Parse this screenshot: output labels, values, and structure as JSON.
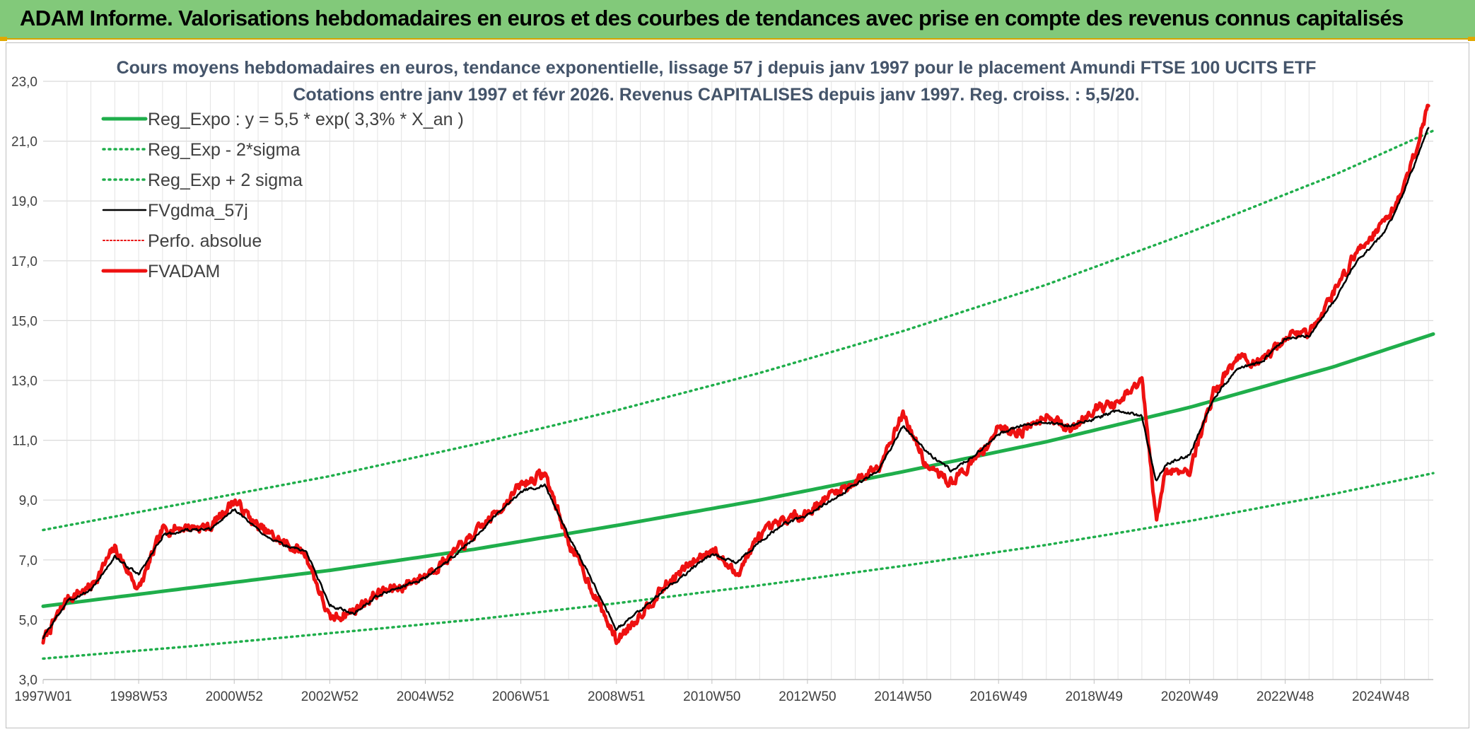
{
  "header": {
    "title": "ADAM Informe. Valorisations hebdomadaires en euros et des courbes de tendances avec prise en compte des revenus connus capitalisés"
  },
  "chart_data": {
    "type": "line",
    "title": "Cours moyens hebdomadaires en euros, tendance exponentielle, lissage 57 j depuis janv 1997 pour le placement Amundi FTSE 100 UCITS ETF",
    "subtitle": "Cotations entre janv 1997 et févr 2026. Revenus CAPITALISES depuis janv 1997. Reg. croiss. : 5,5/20.",
    "xlabel": "",
    "ylabel": "",
    "ylim": [
      3.0,
      23.0
    ],
    "yticks": [
      "3,0",
      "5,0",
      "7,0",
      "9,0",
      "11,0",
      "13,0",
      "15,0",
      "17,0",
      "19,0",
      "21,0",
      "23,0"
    ],
    "xlim": [
      1997.0,
      2026.1
    ],
    "xticks": [
      {
        "label": "1997W01",
        "year": 1997.0
      },
      {
        "label": "1998W53",
        "year": 1999.0
      },
      {
        "label": "2000W52",
        "year": 2001.0
      },
      {
        "label": "2002W52",
        "year": 2003.0
      },
      {
        "label": "2004W52",
        "year": 2005.0
      },
      {
        "label": "2006W51",
        "year": 2007.0
      },
      {
        "label": "2008W51",
        "year": 2009.0
      },
      {
        "label": "2010W50",
        "year": 2011.0
      },
      {
        "label": "2012W50",
        "year": 2013.0
      },
      {
        "label": "2014W50",
        "year": 2015.0
      },
      {
        "label": "2016W49",
        "year": 2017.0
      },
      {
        "label": "2018W49",
        "year": 2019.0
      },
      {
        "label": "2020W49",
        "year": 2021.0
      },
      {
        "label": "2022W48",
        "year": 2023.0
      },
      {
        "label": "2024W48",
        "year": 2025.0
      }
    ],
    "regression": {
      "a": 5.5,
      "rate": 0.033
    },
    "series": [
      {
        "name": "Reg_Expo : y = 5,5 * exp( 3,3% *  X_an )",
        "color": "#1fae4b",
        "style": "solid-thick",
        "x": [
          1997.0,
          2000.0,
          2003.0,
          2006.0,
          2009.0,
          2012.0,
          2015.0,
          2018.0,
          2021.0,
          2024.0,
          2026.1
        ],
        "values": [
          5.45,
          6.05,
          6.65,
          7.35,
          8.15,
          9.0,
          9.95,
          10.95,
          12.1,
          13.45,
          14.55
        ]
      },
      {
        "name": "Reg_Exp - 2*sigma",
        "color": "#1fae4b",
        "style": "dotted",
        "x": [
          1997.0,
          2000.0,
          2003.0,
          2006.0,
          2009.0,
          2012.0,
          2015.0,
          2018.0,
          2021.0,
          2024.0,
          2026.1
        ],
        "values": [
          3.7,
          4.1,
          4.55,
          5.0,
          5.55,
          6.15,
          6.8,
          7.5,
          8.3,
          9.2,
          9.9
        ]
      },
      {
        "name": "Reg_Exp + 2 sigma",
        "color": "#1fae4b",
        "style": "dotted",
        "x": [
          1997.0,
          2000.0,
          2003.0,
          2006.0,
          2009.0,
          2012.0,
          2015.0,
          2018.0,
          2021.0,
          2024.0,
          2026.1
        ],
        "values": [
          8.0,
          8.9,
          9.8,
          10.85,
          12.0,
          13.25,
          14.65,
          16.2,
          17.95,
          19.85,
          21.35
        ]
      },
      {
        "name": "FVgdma_57j",
        "color": "#000000",
        "style": "solid",
        "x": [
          1997.0,
          1997.5,
          1998.0,
          1998.5,
          1999.0,
          1999.5,
          2000.0,
          2000.5,
          2001.0,
          2001.5,
          2002.0,
          2002.5,
          2003.0,
          2003.5,
          2004.0,
          2004.5,
          2005.0,
          2005.5,
          2006.0,
          2006.5,
          2007.0,
          2007.5,
          2008.0,
          2008.5,
          2009.0,
          2009.5,
          2010.0,
          2010.5,
          2011.0,
          2011.5,
          2012.0,
          2012.5,
          2013.0,
          2013.5,
          2014.0,
          2014.5,
          2015.0,
          2015.5,
          2016.0,
          2016.5,
          2017.0,
          2017.5,
          2018.0,
          2018.5,
          2019.0,
          2019.5,
          2020.0,
          2020.3,
          2020.5,
          2021.0,
          2021.5,
          2022.0,
          2022.5,
          2023.0,
          2023.5,
          2024.0,
          2024.5,
          2025.0,
          2025.3,
          2025.6,
          2026.0
        ],
        "values": [
          4.4,
          5.6,
          6.0,
          7.1,
          6.5,
          7.8,
          8.0,
          8.0,
          8.7,
          8.0,
          7.5,
          7.3,
          5.5,
          5.2,
          5.8,
          6.1,
          6.4,
          7.0,
          7.7,
          8.5,
          9.3,
          9.5,
          7.8,
          6.3,
          4.7,
          5.3,
          6.0,
          6.6,
          7.2,
          6.9,
          7.6,
          8.2,
          8.5,
          9.0,
          9.5,
          10.0,
          11.5,
          10.6,
          10.0,
          10.5,
          11.2,
          11.5,
          11.6,
          11.5,
          11.7,
          12.0,
          11.8,
          9.6,
          10.2,
          10.5,
          12.4,
          13.4,
          13.6,
          14.4,
          14.5,
          15.6,
          17.0,
          17.8,
          18.6,
          19.8,
          21.4
        ]
      },
      {
        "name": "Perfo. absolue",
        "color": "#e81010",
        "style": "dotted-thin",
        "x": [],
        "values": []
      },
      {
        "name": "FVADAM",
        "color": "#ee1111",
        "style": "solid-thick",
        "x": [
          1997.0,
          1997.5,
          1998.0,
          1998.5,
          1999.0,
          1999.5,
          2000.0,
          2000.5,
          2001.0,
          2001.5,
          2002.0,
          2002.5,
          2003.0,
          2003.5,
          2004.0,
          2004.5,
          2005.0,
          2005.5,
          2006.0,
          2006.5,
          2007.0,
          2007.5,
          2008.0,
          2008.5,
          2009.0,
          2009.5,
          2010.0,
          2010.5,
          2011.0,
          2011.5,
          2012.0,
          2012.5,
          2013.0,
          2013.5,
          2014.0,
          2014.5,
          2015.0,
          2015.5,
          2016.0,
          2016.5,
          2017.0,
          2017.5,
          2018.0,
          2018.5,
          2019.0,
          2019.5,
          2020.0,
          2020.3,
          2020.5,
          2021.0,
          2021.5,
          2022.0,
          2022.5,
          2023.0,
          2023.5,
          2024.0,
          2024.5,
          2025.0,
          2025.3,
          2025.6,
          2026.0
        ],
        "values": [
          4.3,
          5.7,
          6.1,
          7.4,
          6.0,
          8.0,
          8.1,
          8.1,
          9.0,
          8.1,
          7.6,
          7.2,
          5.0,
          5.3,
          5.9,
          6.1,
          6.5,
          7.1,
          7.8,
          8.6,
          9.5,
          9.9,
          7.6,
          6.0,
          4.3,
          5.2,
          6.1,
          6.8,
          7.4,
          6.5,
          7.8,
          8.3,
          8.6,
          9.2,
          9.6,
          10.2,
          11.9,
          10.1,
          9.6,
          10.3,
          11.4,
          11.3,
          11.9,
          11.3,
          12.1,
          12.2,
          13.0,
          8.3,
          10.0,
          10.0,
          12.6,
          13.8,
          13.5,
          14.5,
          14.6,
          15.9,
          17.3,
          18.2,
          18.8,
          20.0,
          22.2
        ]
      }
    ]
  }
}
